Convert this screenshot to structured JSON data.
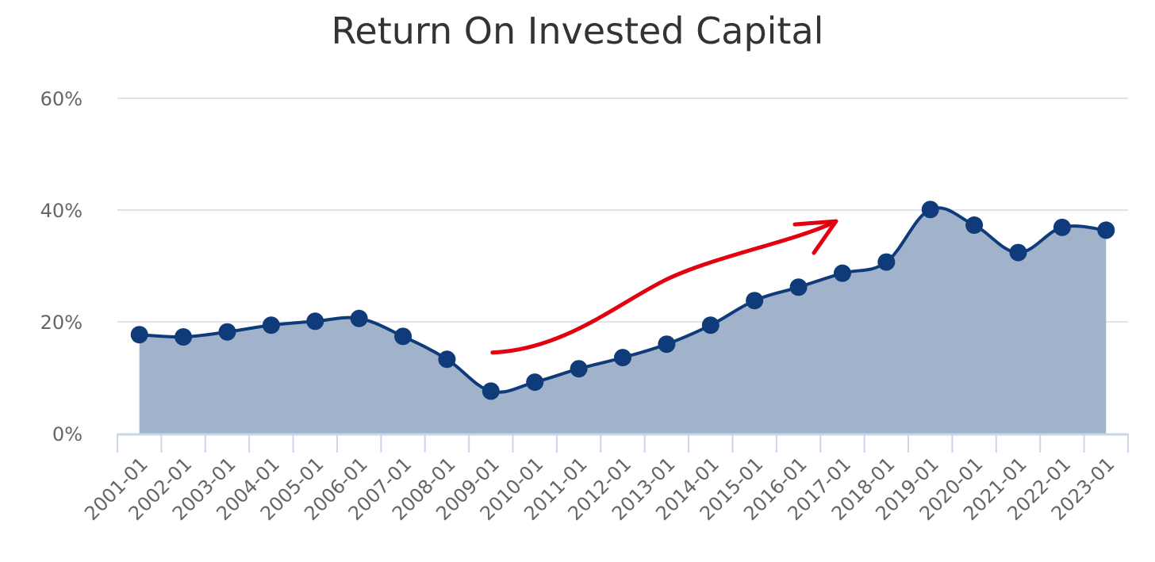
{
  "chart_data": {
    "type": "area",
    "title": "Return On Invested Capital",
    "xlabel": "",
    "ylabel": "",
    "categories": [
      "2001-01",
      "2002-01",
      "2003-01",
      "2004-01",
      "2005-01",
      "2006-01",
      "2007-01",
      "2008-01",
      "2009-01",
      "2010-01",
      "2011-01",
      "2012-01",
      "2013-01",
      "2014-01",
      "2015-01",
      "2016-01",
      "2017-01",
      "2018-01",
      "2019-01",
      "2020-01",
      "2021-01",
      "2022-01",
      "2023-01"
    ],
    "series": [
      {
        "values": [
          17.7,
          17.3,
          18.2,
          19.4,
          20.1,
          20.6,
          17.4,
          13.3,
          7.6,
          9.2,
          11.6,
          13.6,
          16.0,
          19.4,
          23.8,
          26.2,
          28.7,
          30.7,
          40.1,
          37.3,
          32.4,
          36.9,
          36.4
        ]
      }
    ],
    "ylim": [
      0,
      60
    ],
    "yticks": [
      0,
      20,
      40,
      60
    ],
    "ytick_labels": [
      "0%",
      "20%",
      "40%",
      "60%"
    ],
    "grid": true,
    "colors": {
      "line": "#0f3b7a",
      "fill": "#a1b2cb",
      "grid": "#e0e3ea",
      "axis": "#c9d6ea",
      "annotation": "#e3000f"
    },
    "annotation": {
      "type": "arrow",
      "color": "#e3000f",
      "from": {
        "x": "2009-01",
        "y": 14.5
      },
      "to": {
        "x": "2017-01",
        "y": 38
      }
    }
  }
}
